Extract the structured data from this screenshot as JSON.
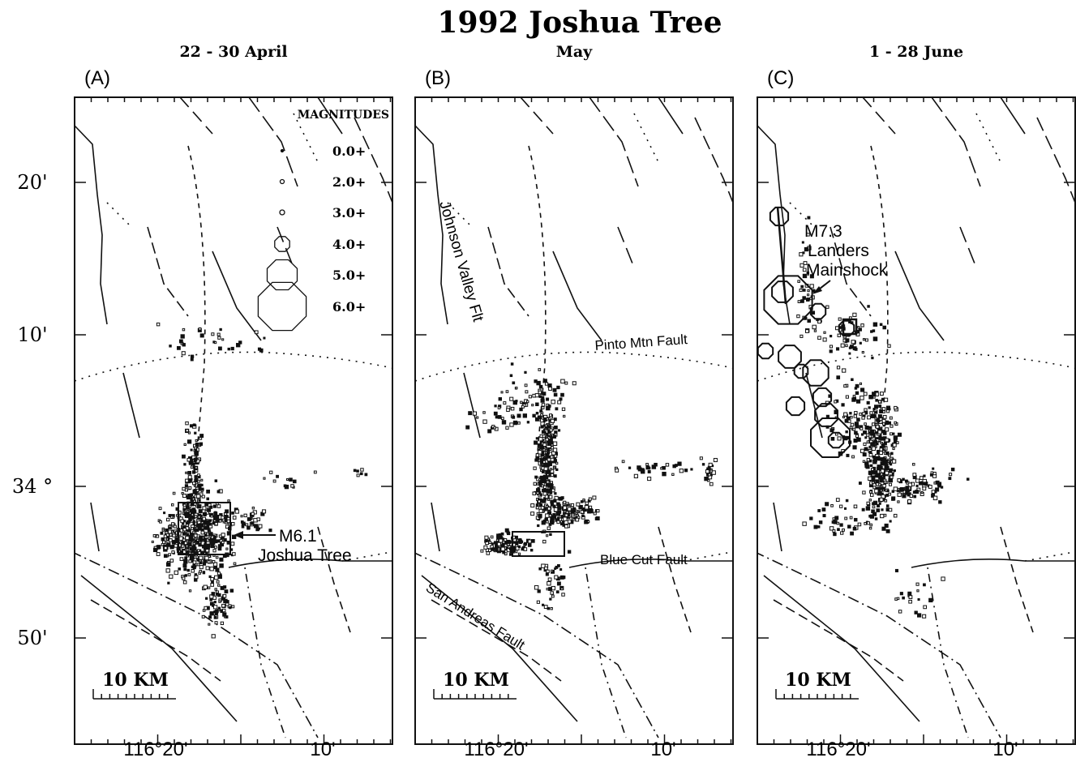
{
  "title": "1992 Joshua Tree",
  "y_labels": [
    "20'",
    "10'",
    "34 °",
    "50'"
  ],
  "legend": {
    "title": "MAGNITUDES",
    "items": [
      "0.0+",
      "2.0+",
      "3.0+",
      "4.0+",
      "5.0+",
      "6.0+"
    ]
  },
  "panels": [
    {
      "date": "22 - 30 April",
      "label": "(A)",
      "x_labels": [
        "116°20'",
        "10'"
      ],
      "scale_label": "10 KM",
      "annotations": [
        "M6.1",
        "Joshua Tree"
      ]
    },
    {
      "date": "May",
      "label": "(B)",
      "x_labels": [
        "116°20'",
        "10'"
      ],
      "scale_label": "10 KM",
      "annotations": [
        "Johnson Valley Flt",
        "Pinto Mtn Fault",
        "Blue Cut Fault",
        "San Andreas Fault"
      ]
    },
    {
      "date": "1 - 28 June",
      "label": "(C)",
      "x_labels": [
        "116°20'",
        "10'"
      ],
      "scale_label": "10 KM",
      "annotations": [
        "M7.3",
        "Landers",
        "Mainshock"
      ]
    }
  ]
}
